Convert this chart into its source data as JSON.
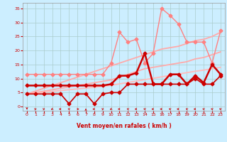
{
  "background_color": "#cceeff",
  "grid_color": "#aacccc",
  "xlabel": "Vent moyen/en rafales ( km/h )",
  "xlabel_color": "#cc0000",
  "tick_color": "#cc0000",
  "xlim": [
    -0.5,
    23.5
  ],
  "ylim": [
    -1.5,
    37
  ],
  "yticks": [
    0,
    5,
    10,
    15,
    20,
    25,
    30,
    35
  ],
  "xticks": [
    0,
    1,
    2,
    3,
    4,
    5,
    6,
    7,
    8,
    9,
    10,
    11,
    12,
    13,
    14,
    15,
    16,
    17,
    18,
    19,
    20,
    21,
    22,
    23
  ],
  "lines": [
    {
      "x": [
        0,
        1,
        2,
        3,
        4,
        5,
        6,
        7,
        8,
        9,
        10,
        11,
        12,
        13,
        14,
        15,
        16,
        17,
        18,
        19,
        20,
        21,
        22,
        23
      ],
      "y": [
        4.5,
        4.5,
        4.5,
        4.5,
        4.5,
        1.0,
        4.5,
        4.5,
        1.0,
        4.5,
        5.0,
        5.0,
        8.0,
        8.0,
        8.0,
        8.0,
        8.0,
        8.0,
        8.0,
        8.0,
        10.0,
        8.0,
        8.0,
        11.0
      ],
      "color": "#cc0000",
      "lw": 1.2,
      "marker": "D",
      "ms": 2.5,
      "zorder": 5
    },
    {
      "x": [
        0,
        1,
        2,
        3,
        4,
        5,
        6,
        7,
        8,
        9,
        10,
        11,
        12,
        13,
        14,
        15,
        16,
        17,
        18,
        19,
        20,
        21,
        22,
        23
      ],
      "y": [
        7.5,
        7.5,
        7.5,
        7.5,
        7.5,
        7.5,
        7.5,
        7.5,
        7.5,
        7.5,
        8.0,
        11.0,
        11.0,
        12.0,
        19.0,
        8.0,
        8.0,
        11.5,
        11.5,
        8.0,
        11.0,
        8.5,
        15.0,
        11.5
      ],
      "color": "#cc0000",
      "lw": 1.8,
      "marker": "D",
      "ms": 2.5,
      "zorder": 5
    },
    {
      "x": [
        0,
        1,
        2,
        3,
        4,
        5,
        6,
        7,
        8,
        9,
        10,
        11,
        12,
        13,
        14,
        15,
        16,
        17,
        18,
        19,
        20,
        21,
        22,
        23
      ],
      "y": [
        11.5,
        11.5,
        11.5,
        11.5,
        11.5,
        11.5,
        11.5,
        11.5,
        11.5,
        11.5,
        15.5,
        26.5,
        23.0,
        24.0,
        15.5,
        19.0,
        35.0,
        32.5,
        29.5,
        23.0,
        23.0,
        23.0,
        15.5,
        27.0
      ],
      "color": "#ff8080",
      "lw": 1.0,
      "marker": "D",
      "ms": 2.5,
      "zorder": 4
    },
    {
      "x": [
        0,
        1,
        2,
        3,
        4,
        5,
        6,
        7,
        8,
        9,
        10,
        11,
        12,
        13,
        14,
        15,
        16,
        17,
        18,
        19,
        20,
        21,
        22,
        23
      ],
      "y": [
        4.5,
        5.5,
        6.5,
        7.5,
        8.5,
        9.5,
        10.5,
        11.5,
        12.5,
        13.5,
        14.5,
        15.5,
        16.5,
        17.5,
        18.5,
        19.5,
        20.5,
        21.0,
        21.5,
        22.5,
        23.5,
        24.0,
        25.0,
        26.5
      ],
      "color": "#ffaaaa",
      "lw": 1.3,
      "marker": null,
      "ms": 0,
      "zorder": 2
    },
    {
      "x": [
        0,
        1,
        2,
        3,
        4,
        5,
        6,
        7,
        8,
        9,
        10,
        11,
        12,
        13,
        14,
        15,
        16,
        17,
        18,
        19,
        20,
        21,
        22,
        23
      ],
      "y": [
        4.5,
        5.0,
        5.5,
        6.0,
        6.5,
        7.0,
        7.5,
        8.0,
        8.5,
        9.0,
        9.5,
        10.5,
        11.5,
        12.5,
        13.5,
        14.0,
        14.5,
        15.0,
        15.5,
        16.0,
        17.0,
        17.5,
        18.5,
        19.5
      ],
      "color": "#ffaaaa",
      "lw": 1.3,
      "marker": null,
      "ms": 0,
      "zorder": 2
    },
    {
      "x": [
        0,
        1,
        2,
        3,
        4,
        5,
        6,
        7,
        8,
        9,
        10,
        11,
        12,
        13,
        14,
        15,
        16,
        17,
        18,
        19,
        20,
        21,
        22,
        23
      ],
      "y": [
        4.5,
        4.8,
        5.1,
        5.4,
        5.7,
        6.0,
        6.3,
        6.6,
        6.9,
        7.2,
        7.6,
        8.1,
        8.6,
        9.1,
        9.6,
        10.1,
        10.6,
        11.1,
        11.6,
        12.1,
        12.6,
        13.0,
        13.5,
        14.0
      ],
      "color": "#ffbbbb",
      "lw": 1.3,
      "marker": null,
      "ms": 0,
      "zorder": 2
    }
  ],
  "wind_directions": [
    180,
    45,
    45,
    225,
    270,
    315,
    90,
    0,
    270,
    45,
    225,
    270,
    315,
    270,
    315,
    270,
    270,
    315,
    270,
    315,
    270,
    315,
    315,
    315
  ]
}
